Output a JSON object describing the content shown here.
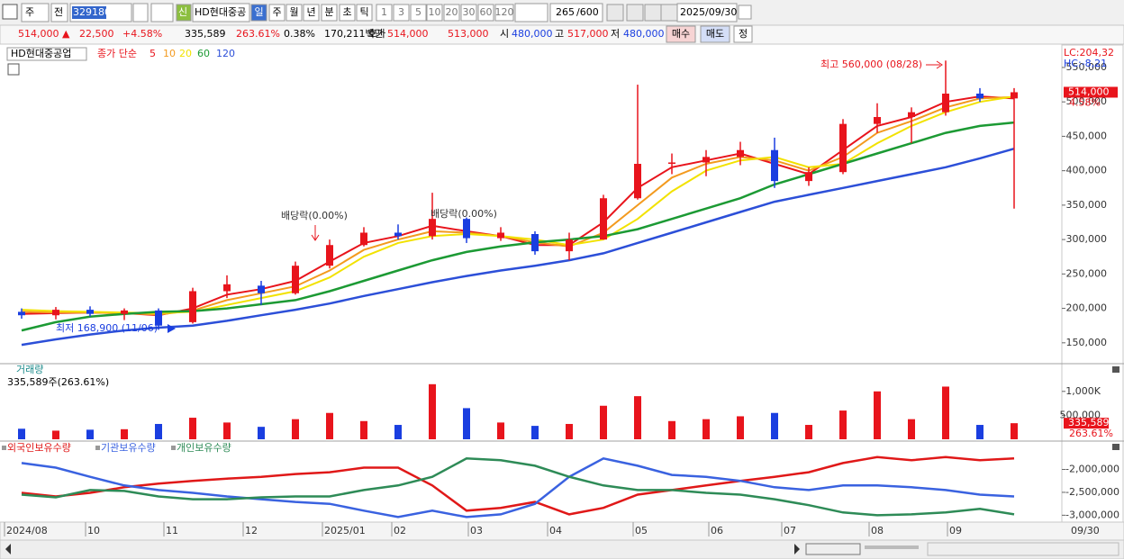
{
  "toolbar": {
    "period_unit": "주",
    "mode": "전",
    "code": "329180",
    "new_badge": "신",
    "name": "HD현대중공",
    "timeframes": [
      "일",
      "주",
      "월",
      "년",
      "분",
      "초",
      "틱"
    ],
    "intervals": [
      "1",
      "3",
      "5",
      "10",
      "20",
      "30",
      "60",
      "120"
    ],
    "count": "265",
    "max_count": "/600",
    "date": "2025/09/30"
  },
  "quote": {
    "price": "514,000 ▲",
    "change": "22,500",
    "change_pct": "+4.58%",
    "volume": "335,589",
    "volume_pct": "263.61%",
    "turnover": "0.38%",
    "amount": "170,211백만",
    "ask_label": "호가",
    "ask": "514,000",
    "bid": "513,000",
    "open_label": "시",
    "open": "480,000",
    "high_label": "고",
    "high": "517,000",
    "low_label": "저",
    "low": "480,000",
    "buy": "매수",
    "sell": "매도",
    "fix": "정"
  },
  "price_chart": {
    "legend_title": "HD현대중공업",
    "legend_label": "종가 단순",
    "lc_label": "LC:204,32",
    "hc_label": "HC:-8,21",
    "high_label": "최고 560,000 (08/28)",
    "low_label": "최저 168,900 (11/06)",
    "ex_dividend_labels": [
      "배당락(0.00%)",
      "배당락(0.00%)"
    ],
    "last_price_label": "514,000",
    "last_change_label": "4.58%",
    "ylim": [
      121000,
      580000
    ],
    "yticks": [
      {
        "value": 150000,
        "label": "150,000"
      },
      {
        "value": 200000,
        "label": "200,000"
      },
      {
        "value": 250000,
        "label": "250,000"
      },
      {
        "value": 300000,
        "label": "300,000"
      },
      {
        "value": 350000,
        "label": "350,000"
      },
      {
        "value": 400000,
        "label": "400,000"
      },
      {
        "value": 450000,
        "label": "450,000"
      },
      {
        "value": 500000,
        "label": "500,000"
      },
      {
        "value": 550000,
        "label": "550,000"
      }
    ],
    "up_color": "#e8141c",
    "down_color": "#1a3ee0",
    "candles": [
      {
        "open": 195000,
        "high": 200000,
        "low": 185000,
        "close": 190000
      },
      {
        "open": 190000,
        "high": 202000,
        "low": 184000,
        "close": 198000
      },
      {
        "open": 198000,
        "high": 203000,
        "low": 188000,
        "close": 192000
      },
      {
        "open": 192000,
        "high": 200000,
        "low": 183000,
        "close": 197000
      },
      {
        "open": 197000,
        "high": 200000,
        "low": 168900,
        "close": 175000
      },
      {
        "open": 180000,
        "high": 230000,
        "low": 178000,
        "close": 225000
      },
      {
        "open": 225000,
        "high": 248000,
        "low": 215000,
        "close": 235000
      },
      {
        "open": 233000,
        "high": 240000,
        "low": 205000,
        "close": 222000
      },
      {
        "open": 222000,
        "high": 268000,
        "low": 220000,
        "close": 262000
      },
      {
        "open": 262000,
        "high": 300000,
        "low": 258000,
        "close": 292000
      },
      {
        "open": 292000,
        "high": 318000,
        "low": 290000,
        "close": 310000
      },
      {
        "open": 310000,
        "high": 322000,
        "low": 300000,
        "close": 305000
      },
      {
        "open": 305000,
        "high": 368000,
        "low": 300000,
        "close": 330000
      },
      {
        "open": 330000,
        "high": 332000,
        "low": 295000,
        "close": 302000
      },
      {
        "open": 302000,
        "high": 318000,
        "low": 298000,
        "close": 310000
      },
      {
        "open": 308000,
        "high": 312000,
        "low": 278000,
        "close": 283000
      },
      {
        "open": 283000,
        "high": 310000,
        "low": 270000,
        "close": 300000
      },
      {
        "open": 300000,
        "high": 365000,
        "low": 300000,
        "close": 360000
      },
      {
        "open": 360000,
        "high": 525000,
        "low": 358000,
        "close": 410000
      },
      {
        "open": 410000,
        "high": 425000,
        "low": 395000,
        "close": 412000
      },
      {
        "open": 412000,
        "high": 430000,
        "low": 392000,
        "close": 420000
      },
      {
        "open": 420000,
        "high": 442000,
        "low": 408000,
        "close": 430000
      },
      {
        "open": 430000,
        "high": 448000,
        "low": 375000,
        "close": 385000
      },
      {
        "open": 385000,
        "high": 405000,
        "low": 378000,
        "close": 398000
      },
      {
        "open": 398000,
        "high": 475000,
        "low": 395000,
        "close": 468000
      },
      {
        "open": 468000,
        "high": 498000,
        "low": 455000,
        "close": 478000
      },
      {
        "open": 478000,
        "high": 492000,
        "low": 440000,
        "close": 485000
      },
      {
        "open": 485000,
        "high": 560000,
        "low": 480000,
        "close": 512000
      },
      {
        "open": 512000,
        "high": 520000,
        "low": 500000,
        "close": 505000
      },
      {
        "open": 505000,
        "high": 520000,
        "low": 345000,
        "close": 514000
      }
    ],
    "ma": [
      {
        "name": "5",
        "color": "#e8141c",
        "values": [
          192000,
          193000,
          194000,
          193000,
          190000,
          200000,
          220000,
          228000,
          240000,
          268000,
          295000,
          305000,
          320000,
          312000,
          305000,
          292000,
          292000,
          325000,
          375000,
          405000,
          415000,
          425000,
          410000,
          395000,
          430000,
          465000,
          478000,
          500000,
          508000,
          505000
        ]
      },
      {
        "name": "10",
        "color": "#f39a1e",
        "values": [
          195000,
          194000,
          194000,
          193000,
          191000,
          197000,
          212000,
          222000,
          232000,
          255000,
          285000,
          300000,
          312000,
          310000,
          305000,
          296000,
          290000,
          310000,
          350000,
          390000,
          410000,
          420000,
          415000,
          400000,
          420000,
          455000,
          472000,
          492000,
          505000,
          507000
        ]
      },
      {
        "name": "20",
        "color": "#f2e200",
        "values": [
          198000,
          196000,
          195000,
          194000,
          193000,
          195000,
          205000,
          215000,
          225000,
          245000,
          275000,
          295000,
          305000,
          308000,
          305000,
          300000,
          292000,
          300000,
          330000,
          370000,
          400000,
          415000,
          420000,
          405000,
          410000,
          440000,
          465000,
          485000,
          500000,
          508000
        ]
      },
      {
        "name": "60",
        "color": "#1c9a34",
        "values": [
          168000,
          180000,
          188000,
          192000,
          195000,
          196000,
          200000,
          206000,
          212000,
          225000,
          240000,
          255000,
          270000,
          282000,
          290000,
          296000,
          300000,
          305000,
          315000,
          330000,
          345000,
          360000,
          380000,
          395000,
          410000,
          425000,
          440000,
          455000,
          465000,
          470000
        ]
      },
      {
        "name": "120",
        "color": "#2c4fd8",
        "values": [
          147000,
          155000,
          162000,
          168000,
          172000,
          175000,
          182000,
          190000,
          198000,
          207000,
          218000,
          228000,
          238000,
          247000,
          255000,
          262000,
          270000,
          280000,
          295000,
          310000,
          325000,
          340000,
          355000,
          365000,
          375000,
          385000,
          395000,
          405000,
          418000,
          432000
        ]
      }
    ]
  },
  "volume_chart": {
    "title": "거래량",
    "summary": "335,589주(263.61%)",
    "last_label": "335,589",
    "last_pct_label": "263.61%",
    "ylim": [
      0,
      1560000
    ],
    "yticks": [
      {
        "value": 500000,
        "label": "500,000"
      },
      {
        "value": 1000000,
        "label": "1,000K"
      }
    ],
    "values": [
      220000,
      180000,
      200000,
      210000,
      320000,
      450000,
      350000,
      260000,
      420000,
      550000,
      380000,
      300000,
      1150000,
      650000,
      350000,
      280000,
      320000,
      700000,
      900000,
      380000,
      420000,
      480000,
      550000,
      300000,
      600000,
      1000000,
      420000,
      1100000,
      300000,
      335589
    ]
  },
  "holdings_chart": {
    "ylim": [
      -3150000,
      -1400000
    ],
    "yticks": [
      {
        "value": -2000000,
        "label": "-2,000,000"
      },
      {
        "value": -2500000,
        "label": "-2,500,000"
      },
      {
        "value": -3000000,
        "label": "-3,000,000"
      }
    ],
    "series": [
      {
        "name": "외국인보유수량",
        "color": "#e01818",
        "values": [
          -2510000,
          -2590000,
          -2510000,
          -2390000,
          -2310000,
          -2250000,
          -2200000,
          -2160000,
          -2100000,
          -2060000,
          -1960000,
          -1960000,
          -2350000,
          -2900000,
          -2840000,
          -2710000,
          -2980000,
          -2840000,
          -2550000,
          -2450000,
          -2350000,
          -2250000,
          -2160000,
          -2060000,
          -1860000,
          -1730000,
          -1800000,
          -1730000,
          -1800000,
          -1760000
        ]
      },
      {
        "name": "기관보유수량",
        "color": "#3a62e0",
        "values": [
          -1860000,
          -1960000,
          -2160000,
          -2350000,
          -2450000,
          -2510000,
          -2590000,
          -2650000,
          -2710000,
          -2750000,
          -2900000,
          -3040000,
          -2900000,
          -3040000,
          -2980000,
          -2750000,
          -2160000,
          -1760000,
          -1920000,
          -2120000,
          -2160000,
          -2250000,
          -2390000,
          -2450000,
          -2350000,
          -2350000,
          -2390000,
          -2450000,
          -2550000,
          -2590000
        ]
      },
      {
        "name": "개인보유수량",
        "color": "#2e8b57",
        "values": [
          -2550000,
          -2610000,
          -2450000,
          -2470000,
          -2590000,
          -2650000,
          -2650000,
          -2610000,
          -2590000,
          -2590000,
          -2450000,
          -2350000,
          -2160000,
          -1760000,
          -1800000,
          -1920000,
          -2160000,
          -2350000,
          -2450000,
          -2450000,
          -2510000,
          -2550000,
          -2650000,
          -2780000,
          -2940000,
          -3000000,
          -2980000,
          -2940000,
          -2860000,
          -2980000
        ]
      }
    ]
  },
  "x_axis": {
    "labels": [
      "2024/08",
      "10",
      "11",
      "12",
      "2025/01",
      "02",
      "03",
      "04",
      "05",
      "06",
      "07",
      "08",
      "09",
      "09/30"
    ]
  }
}
